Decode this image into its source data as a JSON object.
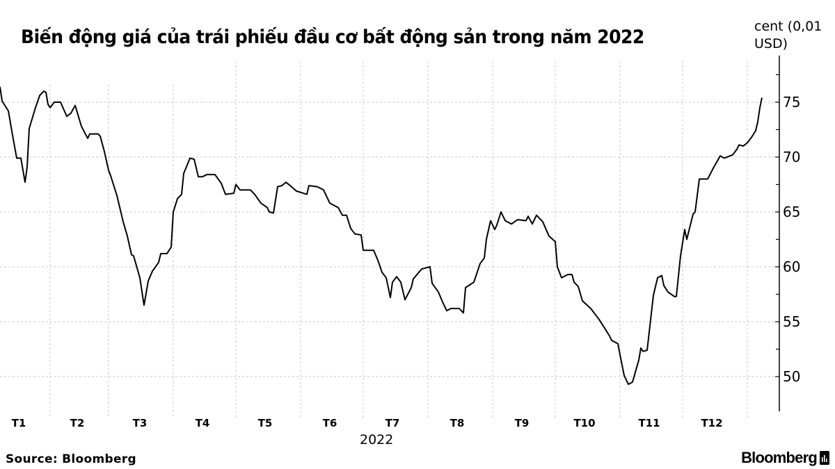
{
  "chart_data": {
    "type": "line",
    "title": "Biến động giá của trái phiếu đầu cơ bất động sản trong năm 2022",
    "ylabel": "cent (0,01 USD)",
    "xlabel": "2022",
    "ylim": [
      46.5,
      79
    ],
    "yticks": [
      50,
      55,
      60,
      65,
      70,
      75
    ],
    "ytick_labels": [
      "50",
      "55",
      "60",
      "65",
      "70",
      "75"
    ],
    "xtick_labels": [
      "T1",
      "T2",
      "T3",
      "T4",
      "T5",
      "T6",
      "T7",
      "T8",
      "T9",
      "T10",
      "T11",
      "T12"
    ],
    "grid": true,
    "y_axis_side": "right",
    "line_color": "#000000",
    "series": [
      {
        "x": [
          "2022-01-08",
          "2022-01-09",
          "2022-01-12",
          "2022-01-14",
          "2022-01-16",
          "2022-01-18",
          "2022-01-20",
          "2022-01-21",
          "2022-01-22",
          "2022-01-25",
          "2022-01-27",
          "2022-01-29",
          "2022-01-30",
          "2022-01-31",
          "2022-02-01",
          "2022-02-03",
          "2022-02-06",
          "2022-02-09",
          "2022-02-11",
          "2022-02-13",
          "2022-02-16",
          "2022-02-19",
          "2022-02-20",
          "2022-02-24",
          "2022-02-25",
          "2022-02-27",
          "2022-03-01",
          "2022-03-02",
          "2022-03-05",
          "2022-03-06",
          "2022-03-08",
          "2022-03-10",
          "2022-03-12",
          "2022-03-13",
          "2022-03-16",
          "2022-03-18",
          "2022-03-20",
          "2022-03-22",
          "2022-03-25",
          "2022-03-26",
          "2022-03-29",
          "2022-03-31",
          "2022-04-01",
          "2022-04-03",
          "2022-04-05",
          "2022-04-06",
          "2022-04-09",
          "2022-04-11",
          "2022-04-13",
          "2022-04-15",
          "2022-04-17",
          "2022-04-21",
          "2022-04-24",
          "2022-04-26",
          "2022-04-30",
          "2022-05-01",
          "2022-05-03",
          "2022-05-08",
          "2022-05-10",
          "2022-05-13",
          "2022-05-16",
          "2022-05-17",
          "2022-05-19",
          "2022-05-21",
          "2022-05-23",
          "2022-05-25",
          "2022-05-27",
          "2022-05-30",
          "2022-06-04",
          "2022-06-05",
          "2022-06-09",
          "2022-06-12",
          "2022-06-15",
          "2022-06-19",
          "2022-06-21",
          "2022-06-23",
          "2022-06-25",
          "2022-06-27",
          "2022-06-30",
          "2022-07-01",
          "2022-07-06",
          "2022-07-08",
          "2022-07-10",
          "2022-07-12",
          "2022-07-14",
          "2022-07-15",
          "2022-07-17",
          "2022-07-19",
          "2022-07-21",
          "2022-07-24",
          "2022-07-25",
          "2022-07-29",
          "2022-08-02",
          "2022-08-03",
          "2022-08-06",
          "2022-08-08",
          "2022-08-10",
          "2022-08-12",
          "2022-08-16",
          "2022-08-18",
          "2022-08-19",
          "2022-08-23",
          "2022-08-26",
          "2022-08-28",
          "2022-08-29",
          "2022-08-31",
          "2022-09-02",
          "2022-09-03",
          "2022-09-05",
          "2022-09-07",
          "2022-09-10",
          "2022-09-13",
          "2022-09-17",
          "2022-09-18",
          "2022-09-20",
          "2022-09-22",
          "2022-09-25",
          "2022-09-28",
          "2022-10-01",
          "2022-10-02",
          "2022-10-04",
          "2022-10-07",
          "2022-10-09",
          "2022-10-10",
          "2022-10-12",
          "2022-10-14",
          "2022-10-18",
          "2022-10-22",
          "2022-10-24",
          "2022-10-27",
          "2022-10-28",
          "2022-10-31",
          "2022-11-01",
          "2022-11-03",
          "2022-11-05",
          "2022-11-07",
          "2022-11-10",
          "2022-11-11",
          "2022-11-12",
          "2022-11-14",
          "2022-11-17",
          "2022-11-19",
          "2022-11-21",
          "2022-11-22",
          "2022-11-24",
          "2022-11-27",
          "2022-11-28",
          "2022-11-30",
          "2022-12-02",
          "2022-12-03",
          "2022-12-06",
          "2022-12-07",
          "2022-12-09",
          "2022-12-13",
          "2022-12-16",
          "2022-12-19",
          "2022-12-21",
          "2022-12-25",
          "2022-12-27",
          "2022-12-28",
          "2022-12-30",
          "2023-01-01",
          "2023-01-03",
          "2023-01-05",
          "2023-01-06",
          "2023-01-07",
          "2023-01-08"
        ],
        "values": [
          76.4,
          75.1,
          74.2,
          72.0,
          69.9,
          69.9,
          67.7,
          69.1,
          72.6,
          74.5,
          75.6,
          76.0,
          75.9,
          74.8,
          74.5,
          75.0,
          75.0,
          73.7,
          74.0,
          74.7,
          72.8,
          71.7,
          72.1,
          72.1,
          71.9,
          70.5,
          68.8,
          68.3,
          66.5,
          65.7,
          64.1,
          62.8,
          61.1,
          61.0,
          59.0,
          56.5,
          58.7,
          59.6,
          60.4,
          61.2,
          61.2,
          61.8,
          65.0,
          66.2,
          66.6,
          68.5,
          69.9,
          69.8,
          68.2,
          68.2,
          68.4,
          68.4,
          67.6,
          66.6,
          66.7,
          67.5,
          67.0,
          67.0,
          66.6,
          65.8,
          65.4,
          65.0,
          64.9,
          67.3,
          67.4,
          67.7,
          67.4,
          66.9,
          66.6,
          67.4,
          67.3,
          67.0,
          65.8,
          65.4,
          64.7,
          64.7,
          63.5,
          63.0,
          62.9,
          61.5,
          61.5,
          60.6,
          59.5,
          59.0,
          57.2,
          58.6,
          59.1,
          58.6,
          57.0,
          58.1,
          58.9,
          59.8,
          60.0,
          58.5,
          57.7,
          56.8,
          56.0,
          56.2,
          56.2,
          55.8,
          58.1,
          58.6,
          60.3,
          60.8,
          62.5,
          64.2,
          63.4,
          63.8,
          65.0,
          64.2,
          63.9,
          64.3,
          64.2,
          64.6,
          63.9,
          64.7,
          64.1,
          62.8,
          62.3,
          60.0,
          59.0,
          59.3,
          59.3,
          58.6,
          58.2,
          56.9,
          56.2,
          55.2,
          54.6,
          53.7,
          53.3,
          53.0,
          52.0,
          50.1,
          49.3,
          49.5,
          51.5,
          52.6,
          52.3,
          52.4,
          57.4,
          59.0,
          59.2,
          58.3,
          57.7,
          57.3,
          57.3,
          61.0,
          63.4,
          62.5,
          64.8,
          65.0,
          68.0,
          68.0,
          69.1,
          70.1,
          69.9,
          70.2,
          70.7,
          71.1,
          71.0,
          71.3,
          71.8,
          72.4,
          73.2,
          74.5,
          75.4
        ]
      }
    ]
  },
  "source": "Source:  Bloomberg",
  "logo": "Bloomberg",
  "logo_icon": "bloomberg-terminal-icon"
}
